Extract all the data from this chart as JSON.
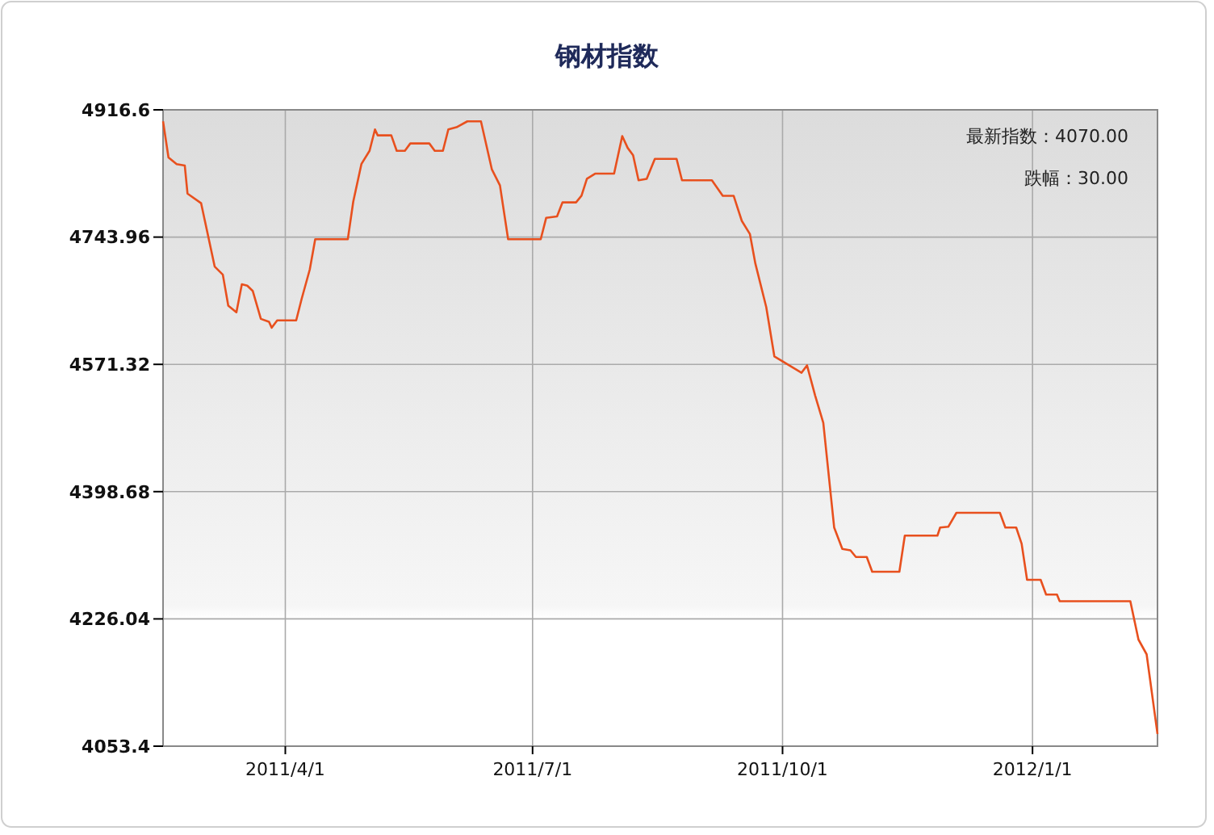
{
  "chart_data": {
    "type": "line",
    "title": "钢材指数",
    "annotations": [
      "最新指数：4070.00",
      "跌幅：30.00"
    ],
    "x": [
      "2011-02-15",
      "2011-02-17",
      "2011-02-20",
      "2011-02-23",
      "2011-02-24",
      "2011-03-01",
      "2011-03-06",
      "2011-03-09",
      "2011-03-11",
      "2011-03-14",
      "2011-03-16",
      "2011-03-18",
      "2011-03-20",
      "2011-03-23",
      "2011-03-26",
      "2011-03-27",
      "2011-03-29",
      "2011-04-05",
      "2011-04-07",
      "2011-04-10",
      "2011-04-12",
      "2011-04-24",
      "2011-04-26",
      "2011-04-29",
      "2011-05-02",
      "2011-05-04",
      "2011-05-05",
      "2011-05-10",
      "2011-05-12",
      "2011-05-15",
      "2011-05-17",
      "2011-05-24",
      "2011-05-26",
      "2011-05-29",
      "2011-05-31",
      "2011-06-03",
      "2011-06-07",
      "2011-06-12",
      "2011-06-16",
      "2011-06-19",
      "2011-06-22",
      "2011-07-04",
      "2011-07-06",
      "2011-07-10",
      "2011-07-12",
      "2011-07-17",
      "2011-07-19",
      "2011-07-21",
      "2011-07-24",
      "2011-07-31",
      "2011-08-03",
      "2011-08-05",
      "2011-08-07",
      "2011-08-09",
      "2011-08-12",
      "2011-08-15",
      "2011-08-23",
      "2011-08-25",
      "2011-09-05",
      "2011-09-09",
      "2011-09-13",
      "2011-09-16",
      "2011-09-19",
      "2011-09-21",
      "2011-09-25",
      "2011-09-28",
      "2011-10-08",
      "2011-10-10",
      "2011-10-13",
      "2011-10-16",
      "2011-10-20",
      "2011-10-23",
      "2011-10-26",
      "2011-10-28",
      "2011-11-01",
      "2011-11-03",
      "2011-11-13",
      "2011-11-15",
      "2011-11-27",
      "2011-11-28",
      "2011-12-01",
      "2011-12-04",
      "2011-12-20",
      "2011-12-22",
      "2011-12-26",
      "2011-12-28",
      "2011-12-30",
      "2012-01-04",
      "2012-01-06",
      "2012-01-10",
      "2012-01-11",
      "2012-02-06",
      "2012-02-09",
      "2012-02-12",
      "2012-02-16"
    ],
    "series": [
      {
        "color": "#e8501e",
        "values": [
          4901,
          4852,
          4843,
          4841,
          4803,
          4790,
          4704,
          4693,
          4651,
          4642,
          4680,
          4678,
          4671,
          4633,
          4629,
          4621,
          4631,
          4631,
          4660,
          4700,
          4741,
          4741,
          4792,
          4843,
          4861,
          4890,
          4882,
          4882,
          4861,
          4861,
          4871,
          4871,
          4861,
          4861,
          4890,
          4893,
          4901,
          4901,
          4836,
          4814,
          4741,
          4741,
          4770,
          4772,
          4791,
          4791,
          4800,
          4823,
          4830,
          4830,
          4881,
          4865,
          4855,
          4821,
          4823,
          4850,
          4850,
          4821,
          4821,
          4800,
          4800,
          4766,
          4748,
          4708,
          4649,
          4582,
          4560,
          4570,
          4529,
          4492,
          4350,
          4321,
          4319,
          4310,
          4310,
          4290,
          4290,
          4339,
          4339,
          4350,
          4351,
          4370,
          4370,
          4350,
          4350,
          4328,
          4279,
          4279,
          4259,
          4259,
          4250,
          4250,
          4198,
          4178,
          4070
        ]
      }
    ],
    "xlim": [
      "2011-02-15",
      "2012-02-16"
    ],
    "xticks": [
      {
        "value": "2011-04-01",
        "label": "2011/4/1"
      },
      {
        "value": "2011-07-01",
        "label": "2011/7/1"
      },
      {
        "value": "2011-10-01",
        "label": "2011/10/1"
      },
      {
        "value": "2012-01-01",
        "label": "2012/1/1"
      }
    ],
    "ylim": [
      4053.4,
      4916.6
    ],
    "yticks": [
      4053.4,
      4226.04,
      4398.68,
      4571.32,
      4743.96,
      4916.6
    ],
    "grid": true,
    "marker": "none",
    "line_style": "solid"
  }
}
